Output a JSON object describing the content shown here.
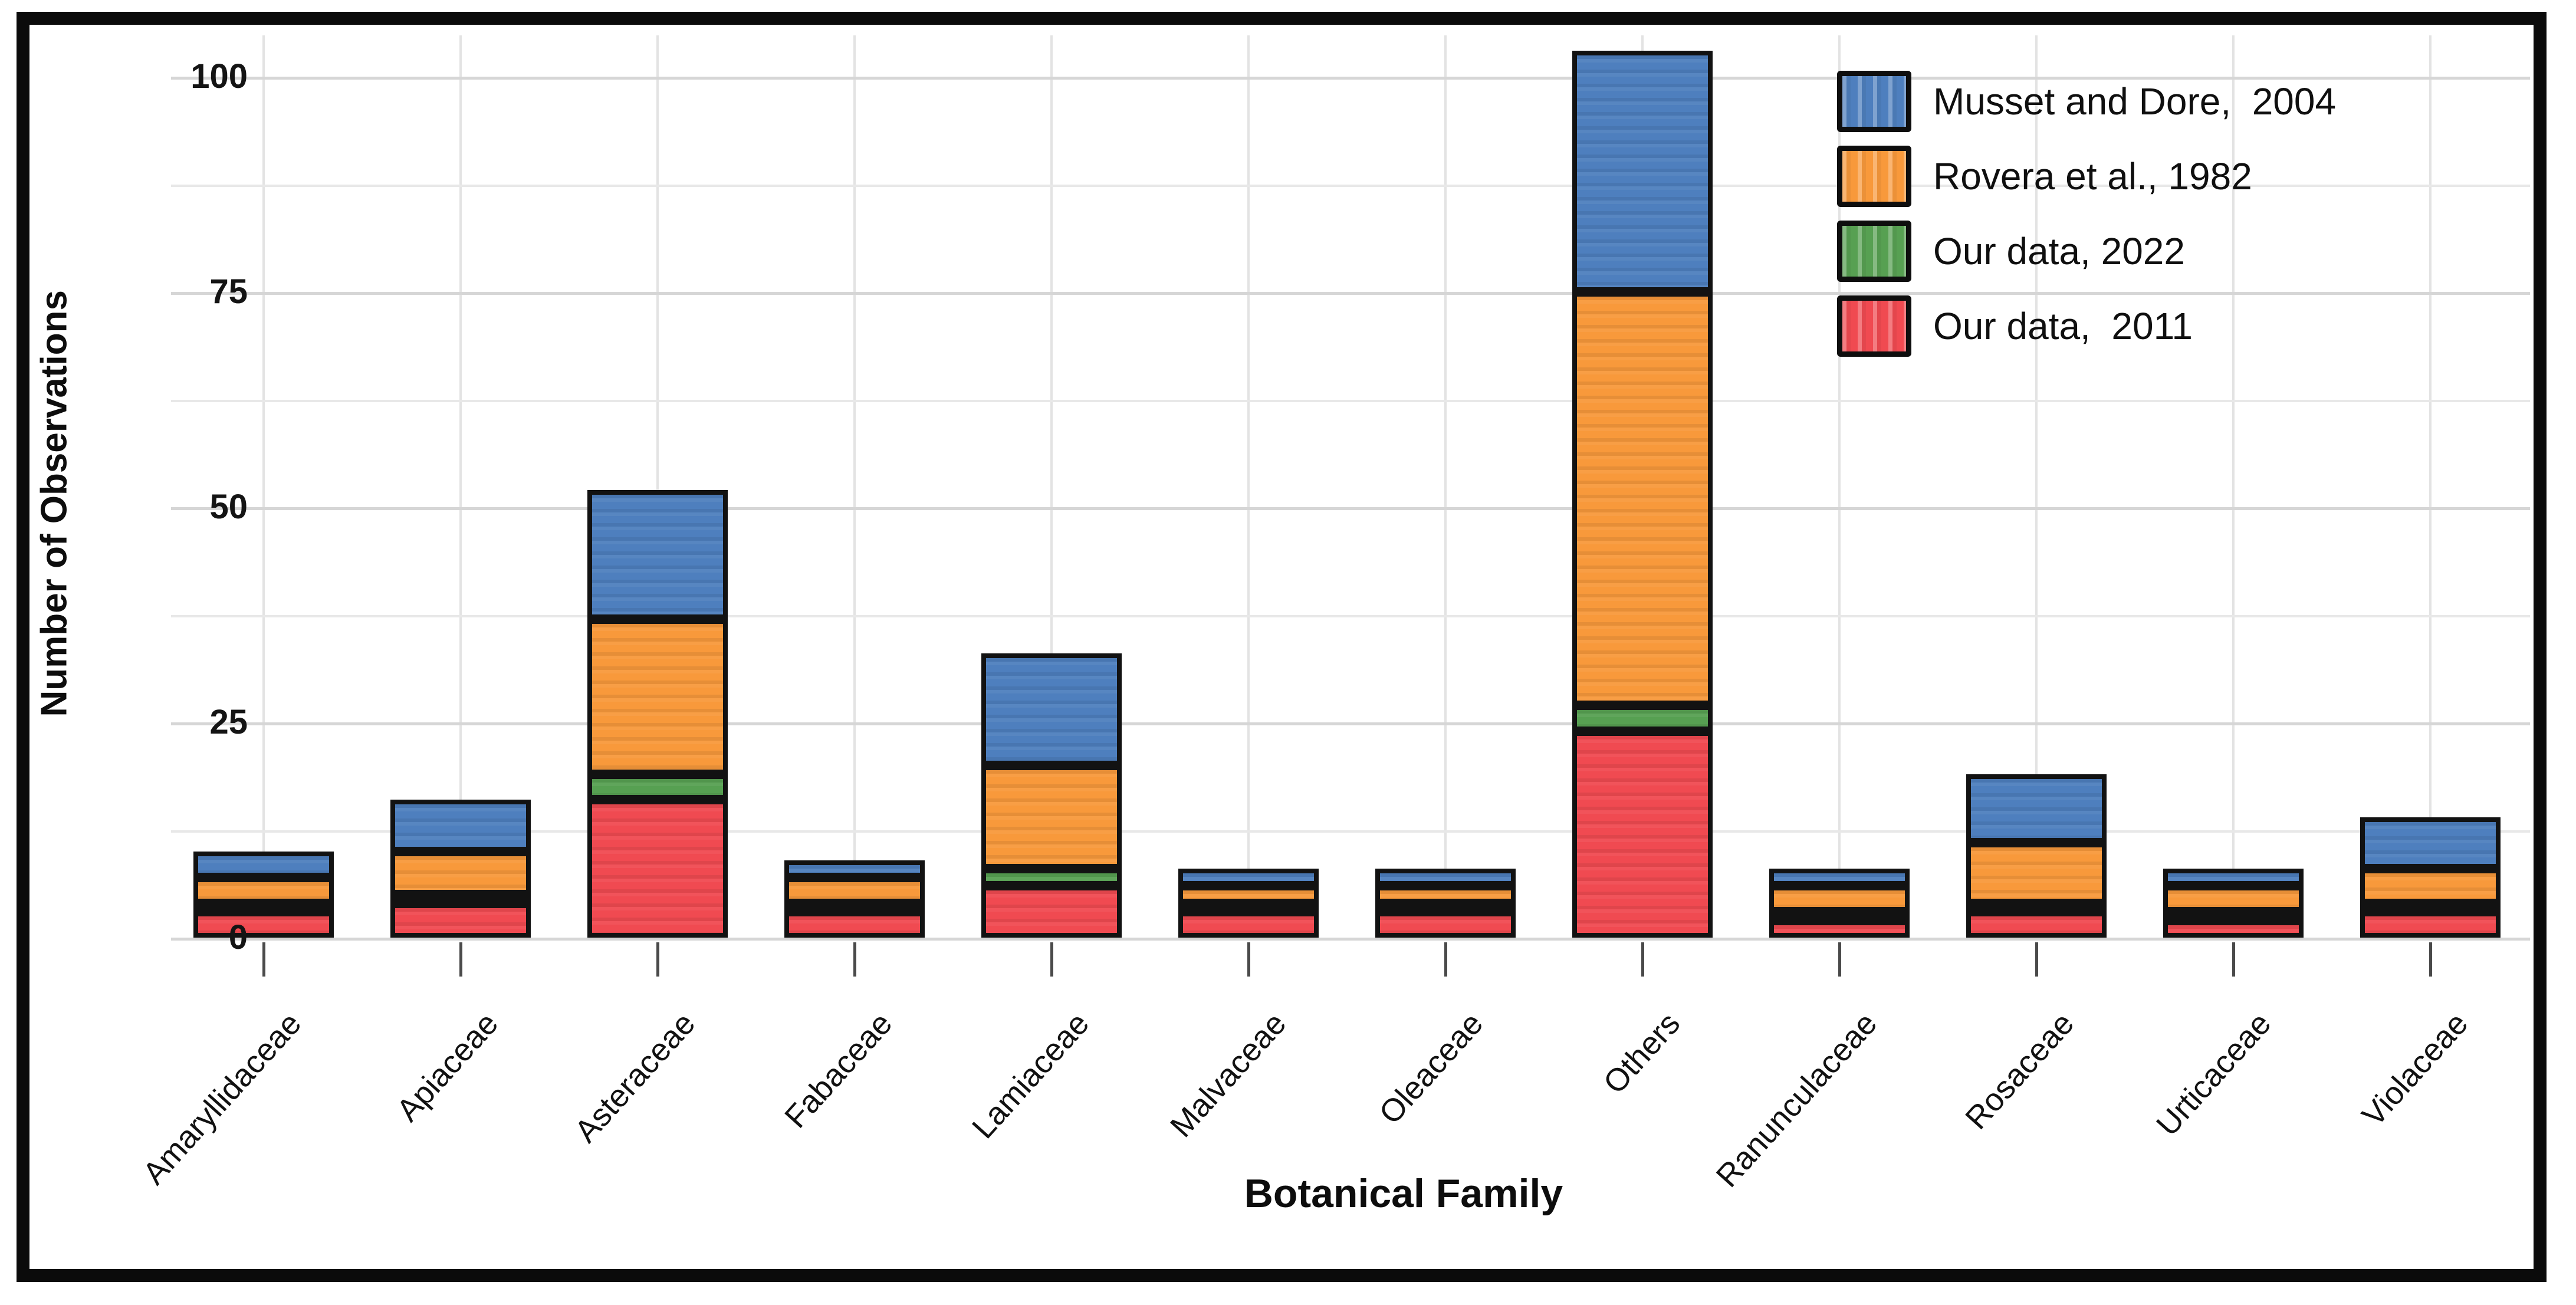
{
  "figure": {
    "kind": "stacked-bar-figure",
    "background_color": "#ffffff",
    "border_color": "#0b0b0b"
  },
  "chart_data": {
    "type": "bar",
    "stacked": true,
    "title": "",
    "xlabel": "Botanical Family",
    "ylabel": "Number of Observations",
    "ylim": [
      0,
      105
    ],
    "grid": true,
    "legend_position": "top-right",
    "yticks": [
      {
        "value": 0,
        "label": "0"
      },
      {
        "value": 25,
        "label": "25"
      },
      {
        "value": 50,
        "label": "50"
      },
      {
        "value": 75,
        "label": "75"
      },
      {
        "value": 100,
        "label": "100"
      }
    ],
    "minor_gridlines": [
      12.5,
      37.5,
      62.5,
      87.5
    ],
    "categories": [
      "Amaryllidaceae",
      "Apiaceae",
      "Asteraceae",
      "Fabaceae",
      "Lamiaceae",
      "Malvaceae",
      "Oleaceae",
      "Others",
      "Ranunculaceae",
      "Rosaceae",
      "Urticaceae",
      "Violaceae"
    ],
    "series": [
      {
        "name": "Musset and Dore,  2004",
        "color": "#4e7fbe",
        "edge_color": "#121212",
        "values": [
          3,
          6,
          15,
          2,
          13,
          2,
          2,
          28,
          2,
          8,
          2,
          6
        ]
      },
      {
        "name": "Rovera et al., 1982",
        "color": "#f8993b",
        "edge_color": "#121212",
        "values": [
          3,
          5,
          18,
          3,
          12,
          2,
          2,
          48,
          3,
          7,
          3,
          4
        ]
      },
      {
        "name": "Our data, 2022",
        "color": "#57a052",
        "edge_color": "#121212",
        "values": [
          1,
          1,
          3,
          1,
          2,
          1,
          1,
          3,
          1,
          1,
          1,
          1
        ]
      },
      {
        "name": "Our data,  2011",
        "color": "#f04a51",
        "edge_color": "#121212",
        "values": [
          3,
          4,
          16,
          3,
          6,
          3,
          3,
          24,
          2,
          3,
          2,
          3
        ]
      }
    ],
    "stack_order_bottom_to_top": [
      "Our data,  2011",
      "Our data, 2022",
      "Rovera et al., 1982",
      "Musset and Dore,  2004"
    ],
    "totals": [
      10,
      16,
      52,
      9,
      33,
      8,
      8,
      103,
      8,
      19,
      8,
      14
    ]
  }
}
